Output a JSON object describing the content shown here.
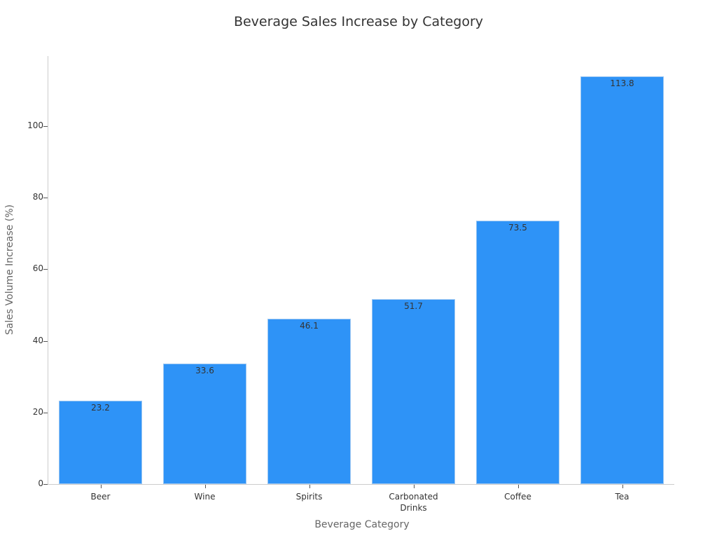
{
  "chart_data": {
    "type": "bar",
    "title": "Beverage Sales Increase by Category",
    "xlabel": "Beverage Category",
    "ylabel": "Sales Volume Increase (%)",
    "categories": [
      "Beer",
      "Wine",
      "Spirits",
      "Carbonated Drinks",
      "Coffee",
      "Tea"
    ],
    "category_display": [
      "Beer",
      "Wine",
      "Spirits",
      "Carbonated\nDrinks",
      "Coffee",
      "Tea"
    ],
    "values": [
      23.2,
      33.6,
      46.1,
      51.7,
      73.5,
      113.8
    ],
    "value_labels": [
      "23.2",
      "33.6",
      "46.1",
      "51.7",
      "73.5",
      "113.8"
    ],
    "ylim": [
      0,
      119.5
    ],
    "yticks": [
      0,
      20,
      40,
      60,
      80,
      100
    ],
    "ytick_labels": [
      "0",
      "20",
      "40",
      "60",
      "80",
      "100"
    ],
    "grid": false,
    "legend": null,
    "bar_color": "#2e93f7"
  }
}
